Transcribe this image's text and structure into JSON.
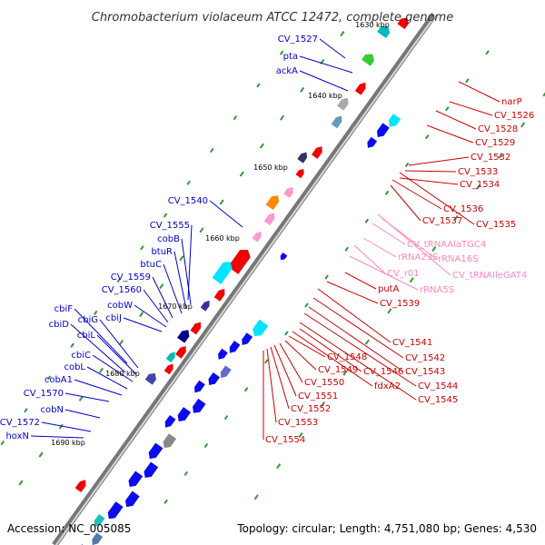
{
  "title": "Chromobacterium violaceum ATCC 12472, complete genome",
  "footer": {
    "accession": "Accession: NC_005085",
    "summary": "Topology: circular; Length: 4,751,080 bp; Genes: 4,530"
  },
  "colors": {
    "forward_gene": "#0b0bf0",
    "reverse_gene": "#f00000",
    "rna": "#ff99cc",
    "label_blue": "#0000cc",
    "label_red": "#cc0000",
    "label_pink": "#ff88bb",
    "gc_skew_dot": "#339933"
  },
  "scale_labels": [
    "1630 kbp",
    "1640 kbp",
    "1650 kbp",
    "1660 kbp",
    "1670 kbp",
    "1680 kbp",
    "1690 kbp"
  ],
  "forward_labels": [
    "CV_1527",
    "pta",
    "ackA",
    "CV_1540",
    "CV_1555",
    "cobB",
    "btuR",
    "btuC",
    "CV_1559",
    "CV_1560",
    "cobW",
    "cbiJ",
    "cbiF",
    "cbiG",
    "cbiD",
    "cbiL",
    "cbiC",
    "cobL",
    "cobA1",
    "CV_1570",
    "cobN",
    "CV_1572",
    "hoxN"
  ],
  "reverse_labels": [
    "narP",
    "CV_1526",
    "CV_1528",
    "CV_1529",
    "CV_1532",
    "CV_1533",
    "CV_1534",
    "CV_1536",
    "CV_1537",
    "CV_1535",
    "putA",
    "CV_1539",
    "CV_1541",
    "CV_1542",
    "CV_1543",
    "CV_1544",
    "CV_1545",
    "CV_1546",
    "fdxA2",
    "CV_1548",
    "CV_1549",
    "CV_1550",
    "CV_1551",
    "CV_1552",
    "CV_1553",
    "CV_1554"
  ],
  "rna_labels": [
    "CV_tRNAAlaTGC4",
    "rRNA23S",
    "rRNA16S",
    "CV_tRNAIleGAT4",
    "CV_r01",
    "rRNA5S"
  ]
}
